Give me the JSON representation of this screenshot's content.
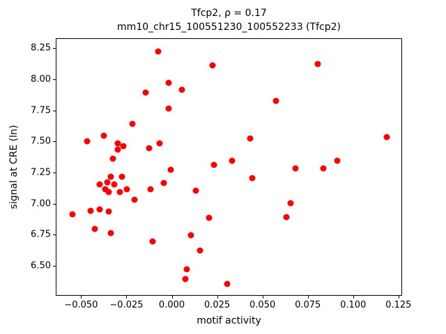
{
  "chart_data": {
    "type": "scatter",
    "title_line1": "Tfcp2, ρ = 0.17",
    "title_line2": "mm10_chr15_100551230_100552233 (Tfcp2)",
    "xlabel": "motif activity",
    "ylabel": "signal at CRE (ln)",
    "marker_color": "#ff0000",
    "xlim": [
      -0.064,
      0.127
    ],
    "ylim": [
      6.26,
      8.33
    ],
    "grid": false,
    "legend": "none",
    "xticks": [
      -0.05,
      -0.025,
      0.0,
      0.025,
      0.05,
      0.075,
      0.1,
      0.125
    ],
    "xtick_labels": [
      "−0.050",
      "−0.025",
      "0.000",
      "0.025",
      "0.050",
      "0.075",
      "0.100",
      "0.125"
    ],
    "yticks": [
      6.5,
      6.75,
      7.0,
      7.25,
      7.5,
      7.75,
      8.0,
      8.25
    ],
    "ytick_labels": [
      "6.50",
      "6.75",
      "7.00",
      "7.25",
      "7.50",
      "7.75",
      "8.00",
      "8.25"
    ],
    "points": [
      [
        -0.055,
        6.92
      ],
      [
        -0.047,
        7.51
      ],
      [
        -0.045,
        6.95
      ],
      [
        -0.043,
        6.8
      ],
      [
        -0.04,
        6.96
      ],
      [
        -0.04,
        7.16
      ],
      [
        -0.038,
        7.55
      ],
      [
        -0.037,
        7.12
      ],
      [
        -0.036,
        7.18
      ],
      [
        -0.035,
        7.1
      ],
      [
        -0.035,
        6.94
      ],
      [
        -0.034,
        7.22
      ],
      [
        -0.034,
        6.77
      ],
      [
        -0.033,
        7.37
      ],
      [
        -0.032,
        7.16
      ],
      [
        -0.03,
        7.44
      ],
      [
        -0.03,
        7.49
      ],
      [
        -0.029,
        7.1
      ],
      [
        -0.028,
        7.22
      ],
      [
        -0.027,
        7.47
      ],
      [
        -0.025,
        7.12
      ],
      [
        -0.022,
        7.65
      ],
      [
        -0.021,
        7.04
      ],
      [
        -0.015,
        7.9
      ],
      [
        -0.013,
        7.45
      ],
      [
        -0.012,
        7.12
      ],
      [
        -0.011,
        6.7
      ],
      [
        -0.008,
        8.23
      ],
      [
        -0.007,
        7.49
      ],
      [
        -0.005,
        7.17
      ],
      [
        -0.002,
        7.98
      ],
      [
        -0.002,
        7.77
      ],
      [
        -0.001,
        7.28
      ],
      [
        0.005,
        7.92
      ],
      [
        0.007,
        6.4
      ],
      [
        0.008,
        6.48
      ],
      [
        0.01,
        6.75
      ],
      [
        0.013,
        7.11
      ],
      [
        0.015,
        6.63
      ],
      [
        0.02,
        6.89
      ],
      [
        0.022,
        8.12
      ],
      [
        0.023,
        7.32
      ],
      [
        0.03,
        6.36
      ],
      [
        0.033,
        7.35
      ],
      [
        0.043,
        7.53
      ],
      [
        0.044,
        7.21
      ],
      [
        0.057,
        7.83
      ],
      [
        0.063,
        6.9
      ],
      [
        0.065,
        7.01
      ],
      [
        0.068,
        7.29
      ],
      [
        0.08,
        8.13
      ],
      [
        0.083,
        7.29
      ],
      [
        0.091,
        7.35
      ],
      [
        0.118,
        7.54
      ]
    ]
  }
}
